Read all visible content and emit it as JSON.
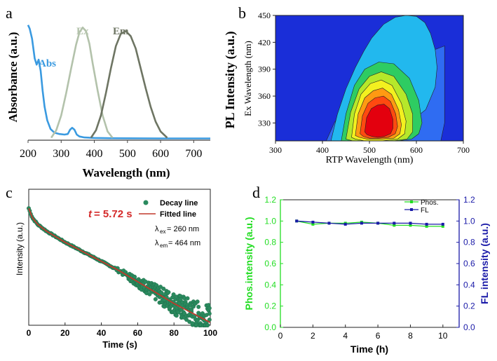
{
  "panel_labels": {
    "a": "a",
    "b": "b",
    "c": "c",
    "d": "d"
  },
  "chart_data": [
    {
      "panel": "a",
      "type": "line",
      "xlabel": "Wavelength (nm)",
      "ylabel": "Absorbance (a.u.)",
      "xlim": [
        200,
        750
      ],
      "x_ticks": [
        200,
        300,
        400,
        500,
        600,
        700
      ],
      "series": [
        {
          "name": "Abs",
          "color": "#3a9ae0",
          "x": [
            200,
            205,
            212,
            220,
            226,
            232,
            238,
            244,
            250,
            258,
            268,
            280,
            295,
            310,
            320,
            327,
            333,
            340,
            347,
            355,
            370,
            400,
            450,
            500,
            600,
            700,
            750
          ],
          "y": [
            0.93,
            0.9,
            0.82,
            0.66,
            0.61,
            0.65,
            0.56,
            0.4,
            0.27,
            0.16,
            0.09,
            0.06,
            0.05,
            0.045,
            0.05,
            0.085,
            0.1,
            0.085,
            0.045,
            0.03,
            0.022,
            0.018,
            0.016,
            0.015,
            0.014,
            0.014,
            0.014
          ]
        },
        {
          "name": "Ex",
          "color": "#b3c2ab",
          "x": [
            270,
            285,
            300,
            315,
            330,
            345,
            355,
            365,
            375,
            385,
            395,
            410,
            425,
            440,
            455
          ],
          "y": [
            0.02,
            0.08,
            0.2,
            0.38,
            0.58,
            0.77,
            0.87,
            0.91,
            0.88,
            0.78,
            0.62,
            0.4,
            0.2,
            0.07,
            0.02
          ]
        },
        {
          "name": "Em",
          "color": "#6e7563",
          "x": [
            390,
            405,
            420,
            435,
            450,
            465,
            480,
            495,
            510,
            525,
            540,
            555,
            570,
            585,
            600,
            620
          ],
          "y": [
            0.02,
            0.08,
            0.2,
            0.38,
            0.58,
            0.76,
            0.86,
            0.88,
            0.84,
            0.74,
            0.58,
            0.42,
            0.27,
            0.15,
            0.07,
            0.02
          ]
        }
      ]
    },
    {
      "panel": "b",
      "type": "heatmap",
      "title": "PL Intensity (a.u.)",
      "xlabel": "RTP Wavelength (nm)",
      "ylabel": "Ex Wavelength (nm)",
      "xlim": [
        300,
        700
      ],
      "ylim": [
        310,
        450
      ],
      "x_ticks": [
        300,
        400,
        500,
        600,
        700
      ],
      "y_ticks": [
        330,
        360,
        390,
        420,
        450
      ],
      "peak": {
        "x": 515,
        "y": 350
      },
      "contour_levels": [
        {
          "x": [
            408,
            425,
            455,
            495,
            525,
            560,
            605,
            640,
            660,
            660,
            652,
            640,
            612,
            570,
            520,
            478,
            452,
            436,
            420,
            408
          ],
          "y": [
            310,
            330,
            355,
            378,
            392,
            400,
            405,
            412,
            416,
            330,
            310,
            310,
            310,
            310,
            310,
            310,
            310,
            310,
            310,
            310
          ]
        },
        {
          "x": [
            418,
            432,
            450,
            470,
            488,
            505,
            530,
            555,
            578,
            600,
            618,
            630,
            640,
            644,
            640,
            620,
            560,
            500,
            460,
            430,
            418
          ],
          "y": [
            310,
            340,
            368,
            392,
            410,
            425,
            440,
            448,
            450,
            449,
            442,
            430,
            412,
            392,
            370,
            345,
            320,
            310,
            310,
            310,
            310
          ]
        },
        {
          "x": [
            440,
            450,
            468,
            490,
            520,
            552,
            585,
            605,
            612,
            605,
            590,
            560,
            500,
            460,
            440
          ],
          "y": [
            310,
            340,
            372,
            390,
            398,
            396,
            380,
            355,
            330,
            318,
            312,
            310,
            310,
            310,
            310
          ]
        },
        {
          "x": [
            450,
            460,
            478,
            500,
            525,
            552,
            578,
            592,
            592,
            580,
            550,
            500,
            465,
            450
          ],
          "y": [
            312,
            342,
            368,
            382,
            387,
            382,
            362,
            340,
            320,
            312,
            310,
            310,
            310,
            312
          ]
        },
        {
          "x": [
            462,
            468,
            482,
            502,
            525,
            548,
            568,
            578,
            575,
            560,
            525,
            490,
            470,
            462
          ],
          "y": [
            314,
            340,
            362,
            374,
            378,
            372,
            352,
            332,
            318,
            312,
            310,
            310,
            312,
            314
          ]
        },
        {
          "x": [
            470,
            476,
            490,
            508,
            528,
            547,
            562,
            568,
            565,
            552,
            525,
            495,
            478,
            470
          ],
          "y": [
            316,
            340,
            358,
            366,
            369,
            362,
            345,
            328,
            318,
            313,
            312,
            312,
            314,
            316
          ]
        },
        {
          "x": [
            480,
            485,
            497,
            512,
            530,
            545,
            556,
            560,
            555,
            540,
            520,
            500,
            487,
            480
          ],
          "y": [
            318,
            338,
            352,
            358,
            360,
            354,
            340,
            326,
            318,
            314,
            313,
            313,
            315,
            318
          ]
        },
        {
          "x": [
            490,
            494,
            504,
            517,
            531,
            543,
            550,
            550,
            545,
            532,
            518,
            505,
            495,
            490
          ],
          "y": [
            320,
            336,
            346,
            350,
            351,
            346,
            334,
            324,
            318,
            315,
            314,
            315,
            317,
            320
          ]
        }
      ],
      "colors": [
        "#1a2ed8",
        "#2f6cf2",
        "#22b8ee",
        "#2ecc62",
        "#b6e82a",
        "#f3f01f",
        "#ff9a12",
        "#ff4a10",
        "#e3000e"
      ]
    },
    {
      "panel": "c",
      "type": "scatter",
      "xlabel": "Time (s)",
      "ylabel": "Intensity (a.u.)",
      "xlim": [
        0,
        100
      ],
      "x_ticks": [
        0,
        20,
        40,
        60,
        80,
        100
      ],
      "annotation_t": "t",
      "annotation_value": "= 5.72 s",
      "legend": [
        "Decay line",
        "Fitted line"
      ],
      "lambda_ex": "ex",
      "lambda_ex_value": "= 260 nm",
      "lambda_em": "em",
      "lambda_em_value": "= 464 nm",
      "lambda_symbol": "λ",
      "fit": {
        "x": [
          0,
          2,
          5,
          10,
          15,
          20,
          30,
          40,
          50,
          60,
          70,
          80,
          90,
          100
        ],
        "y": [
          0.86,
          0.79,
          0.74,
          0.69,
          0.65,
          0.61,
          0.54,
          0.47,
          0.4,
          0.32,
          0.24,
          0.16,
          0.09,
          0.02
        ]
      },
      "colors": {
        "points": "#2a8a5e",
        "fit": "#c0392b"
      }
    },
    {
      "panel": "d",
      "type": "line",
      "xlabel": "Time (h)",
      "ylabel_left": "Phos.intensity (a.u.)",
      "ylabel_right": "FL intensity (a.u.)",
      "xlim": [
        0,
        11
      ],
      "ylim": [
        0,
        1.2
      ],
      "x_ticks": [
        0,
        2,
        4,
        6,
        8,
        10
      ],
      "y_ticks": [
        "0.0",
        "0.2",
        "0.4",
        "0.6",
        "0.8",
        "1.0",
        "1.2"
      ],
      "series": [
        {
          "name": "Phos.",
          "color": "#22dd22",
          "x": [
            1,
            2,
            3,
            4,
            5,
            6,
            7,
            8,
            9,
            10
          ],
          "y": [
            1.0,
            0.97,
            0.98,
            0.98,
            0.99,
            0.98,
            0.96,
            0.96,
            0.95,
            0.95
          ]
        },
        {
          "name": "FL",
          "color": "#1a1aa8",
          "x": [
            1,
            2,
            3,
            4,
            5,
            6,
            7,
            8,
            9,
            10
          ],
          "y": [
            1.0,
            0.99,
            0.98,
            0.97,
            0.98,
            0.98,
            0.98,
            0.98,
            0.97,
            0.97
          ]
        }
      ]
    }
  ]
}
